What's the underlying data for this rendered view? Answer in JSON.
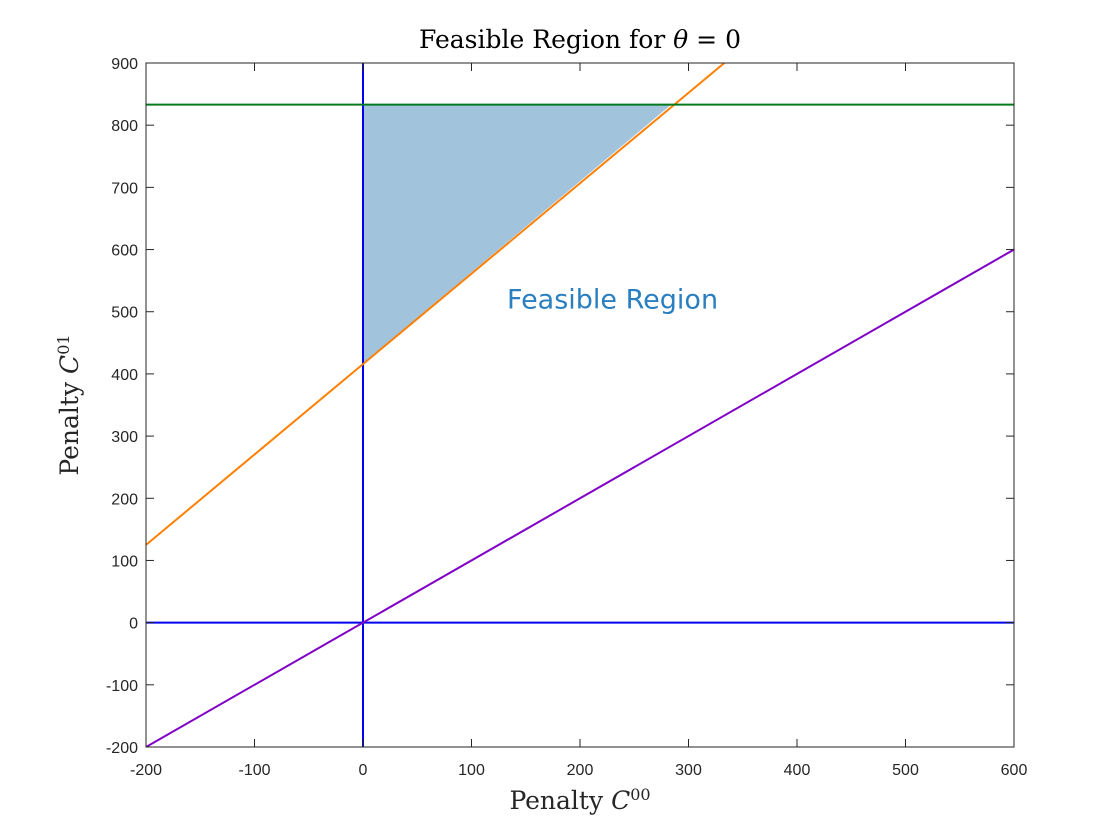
{
  "chart_data": {
    "type": "line",
    "title": "Feasible Region for θ = 0",
    "title_parts": {
      "text": "Feasible Region for ",
      "symbol": "θ",
      "equals": " = 0"
    },
    "xlabel": "Penalty C^00",
    "xlabel_parts": {
      "text": "Penalty ",
      "symbol": "C",
      "sup": "00"
    },
    "ylabel": "Penalty C^01",
    "ylabel_parts": {
      "text": "Penalty ",
      "symbol": "C",
      "sup": "01"
    },
    "xlim": [
      -200,
      600
    ],
    "ylim": [
      -200,
      900
    ],
    "xticks": [
      -200,
      -100,
      0,
      100,
      200,
      300,
      400,
      500,
      600
    ],
    "yticks": [
      -200,
      -100,
      0,
      100,
      200,
      300,
      400,
      500,
      600,
      700,
      800,
      900
    ],
    "grid": false,
    "series": [
      {
        "color": "#0000ee",
        "kind": "vertical",
        "x": [
          0,
          0
        ],
        "y": [
          -200,
          900
        ]
      },
      {
        "color": "#0000ee",
        "kind": "horizontal",
        "x": [
          -200,
          600
        ],
        "y": [
          0,
          0
        ]
      },
      {
        "color": "#8000c8",
        "x": [
          -200,
          600
        ],
        "y": [
          -200,
          600
        ]
      },
      {
        "color": "#ff8000",
        "x": [
          -200,
          333
        ],
        "y": [
          125,
          900
        ]
      },
      {
        "color": "#007a1f",
        "kind": "horizontal",
        "x": [
          -200,
          600
        ],
        "y": [
          833,
          833
        ]
      }
    ],
    "fill": {
      "color": "#a2c3dc",
      "vertices": [
        [
          0,
          833
        ],
        [
          284,
          833
        ],
        [
          0,
          417
        ]
      ]
    },
    "annotations": [
      {
        "text": "Feasible Region",
        "x": 230,
        "y": 520,
        "color": "#2a7fc1"
      }
    ]
  }
}
